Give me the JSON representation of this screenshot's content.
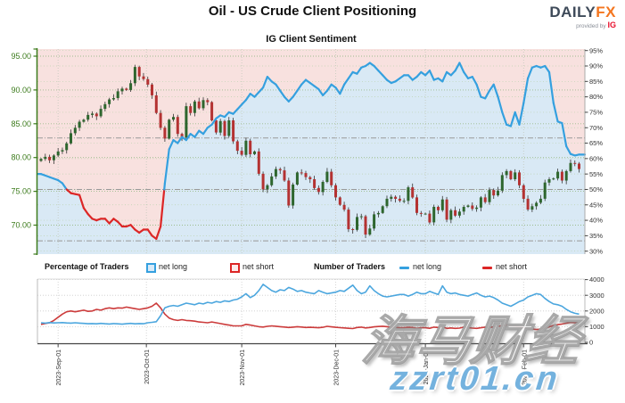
{
  "header": {
    "title": "Oil - US Crude Client Positioning",
    "subtitle": "IG Client Sentiment",
    "logo": {
      "daily": "DAILY",
      "fx": "FX",
      "provided_by": "provided by",
      "ig": "IG"
    }
  },
  "legend": {
    "pct_label": "Percentage of Traders",
    "pct_net_long": "net long",
    "pct_net_short": "net short",
    "num_label": "Number of Traders",
    "num_net_long": "net long",
    "num_net_short": "net short"
  },
  "watermark": {
    "cn_text": "海马财经",
    "url_text": "zzrt01.cn"
  },
  "colors": {
    "short_area": "#f8e1df",
    "long_area": "#d9e9f5",
    "line_long": "#35a0df",
    "line_short": "#dc2626",
    "candle_up": "#2e662e",
    "candle_down": "#b43232",
    "wick": "#333333",
    "grid_price": "#9cbc8c",
    "grid_pct": "#bcd2ae",
    "grid_threshold": "#999999",
    "grid_vertical": "#c2c8bc",
    "grid_bottom": "#cccccc",
    "axis_green": "#3c7b1c",
    "axis_gray": "#aaaaaa",
    "axis_dark": "#444444",
    "count_long": "#4ba6de",
    "count_short": "#cc3b3b",
    "label_dark": "#333333"
  },
  "chart_data": [
    {
      "type": "candlestick+line",
      "title": "IG Client Sentiment",
      "left_axis": {
        "ticks": [
          "95.00",
          "90.00",
          "85.00",
          "80.00",
          "75.00",
          "70.00"
        ]
      },
      "right_axis": {
        "ticks": [
          "95%",
          "90%",
          "85%",
          "80%",
          "75%",
          "70%",
          "65%",
          "60%",
          "55%",
          "50%",
          "45%",
          "40%",
          "35%",
          "30%"
        ]
      },
      "threshold_lines_pct": [
        66.67,
        50,
        33.33
      ],
      "x_axis": {
        "tick_labels": [
          "2023-Sep-01",
          "2023-Oct-01",
          "2023-Nov-01",
          "2023-Dec-01",
          "2024-Jan-01",
          "2024-Feb-01"
        ],
        "tick_indices": [
          4,
          24.67,
          47,
          69,
          90,
          113
        ]
      },
      "candles_close": [
        79.8,
        80.1,
        79.6,
        80.3,
        80.9,
        81.1,
        82.1,
        83.6,
        84.4,
        85.3,
        85.6,
        86.3,
        86.5,
        86.1,
        87.2,
        87.9,
        88.6,
        88.8,
        89.8,
        90.2,
        90.0,
        91.0,
        93.4,
        92.0,
        91.6,
        90.8,
        89.2,
        86.6,
        84.4,
        82.8,
        85.6,
        86.0,
        83.5,
        83.0,
        87.6,
        86.6,
        88.3,
        87.3,
        88.5,
        88.2,
        85.5,
        83.7,
        85.4,
        83.2,
        85.5,
        82.4,
        81.0,
        80.4,
        82.5,
        80.5,
        80.9,
        77.6,
        75.3,
        75.9,
        77.2,
        78.3,
        78.1,
        76.6,
        72.9,
        76.0,
        77.8,
        77.7,
        77.1,
        76.8,
        75.5,
        74.9,
        76.4,
        77.9,
        75.9,
        74.1,
        73.0,
        72.3,
        69.4,
        69.3,
        71.2,
        71.3,
        68.6,
        69.5,
        71.6,
        71.8,
        72.8,
        73.9,
        74.2,
        73.9,
        73.6,
        73.6,
        75.6,
        74.1,
        71.8,
        71.7,
        71.7,
        70.4,
        72.7,
        72.2,
        73.8,
        70.8,
        72.2,
        71.4,
        72.0,
        72.7,
        72.9,
        72.4,
        72.6,
        74.1,
        73.4,
        75.2,
        74.4,
        75.1,
        77.4,
        78.0,
        76.8,
        77.8,
        75.9,
        73.9,
        72.3,
        72.8,
        73.3,
        73.9,
        76.3,
        76.8,
        76.9,
        77.9,
        76.6,
        78.0,
        79.2,
        79.1,
        78.3
      ],
      "net_long_pct": [
        55,
        54.5,
        54,
        53.5,
        53,
        52,
        50,
        48.8,
        48.5,
        48.2,
        44,
        42,
        40.5,
        40,
        40.5,
        40.5,
        39,
        40.5,
        39.5,
        38,
        38,
        38.5,
        37,
        36,
        37,
        37,
        35,
        34,
        38,
        52,
        63,
        66,
        65,
        67,
        66,
        68,
        67,
        69,
        68,
        70,
        71,
        73,
        74,
        73.5,
        75,
        74.5,
        76,
        77.5,
        79,
        81,
        80,
        81.5,
        83,
        86.5,
        85,
        84,
        82,
        80,
        78.5,
        80,
        82,
        84,
        85.5,
        84.5,
        83.5,
        82.5,
        80.5,
        82,
        84,
        83,
        81,
        84,
        86,
        88,
        87.5,
        89.5,
        90,
        91,
        90,
        88.5,
        87,
        85.5,
        84.5,
        85,
        86,
        87,
        87,
        85.5,
        86.5,
        88,
        87,
        88.5,
        85.5,
        86,
        85,
        88,
        87,
        88.5,
        91,
        88,
        86,
        86.5,
        84,
        80,
        79.5,
        82,
        84,
        80,
        75,
        71,
        70.5,
        75,
        71,
        78,
        86,
        89.5,
        90,
        89.5,
        90,
        88,
        78,
        72,
        71.5,
        64,
        61.5,
        61,
        61.3
      ]
    },
    {
      "type": "line",
      "right_axis": {
        "ticks": [
          "4000",
          "3000",
          "2000",
          "1000",
          "0"
        ]
      },
      "net_long_count": [
        1250,
        1230,
        1260,
        1240,
        1250,
        1260,
        1240,
        1230,
        1250,
        1230,
        1210,
        1190,
        1200,
        1180,
        1210,
        1190,
        1170,
        1200,
        1180,
        1160,
        1190,
        1210,
        1180,
        1200,
        1190,
        1250,
        1280,
        1320,
        1700,
        2200,
        2300,
        2350,
        2300,
        2400,
        2500,
        2450,
        2400,
        2500,
        2450,
        2550,
        2500,
        2600,
        2550,
        2650,
        2600,
        2700,
        2750,
        2900,
        3100,
        2850,
        3000,
        3300,
        3700,
        3500,
        3300,
        3200,
        3350,
        3300,
        3500,
        3400,
        3250,
        3300,
        3200,
        3150,
        3100,
        3300,
        3200,
        3100,
        3150,
        3200,
        3300,
        3250,
        3450,
        3650,
        3300,
        3100,
        3200,
        3600,
        3300,
        3100,
        2950,
        2900,
        2950,
        3000,
        3050,
        3050,
        2950,
        3050,
        3200,
        3100,
        3100,
        3250,
        3150,
        3050,
        3600,
        3200,
        3100,
        3150,
        3050,
        3000,
        2950,
        3050,
        3150,
        3000,
        2900,
        2950,
        2850,
        2700,
        2500,
        2400,
        2300,
        2450,
        2600,
        2700,
        2900,
        3000,
        3100,
        3050,
        2800,
        2600,
        2450,
        2400,
        2300,
        2100,
        1950,
        1850,
        1800
      ],
      "net_short_count": [
        1150,
        1200,
        1250,
        1400,
        1600,
        1800,
        1950,
        2000,
        1950,
        2000,
        2050,
        1980,
        2000,
        2100,
        2050,
        2150,
        2200,
        2150,
        2200,
        2180,
        2250,
        2200,
        2150,
        2100,
        2150,
        2200,
        2300,
        2500,
        2200,
        1800,
        1550,
        1450,
        1400,
        1450,
        1400,
        1380,
        1350,
        1300,
        1280,
        1250,
        1300,
        1250,
        1200,
        1150,
        1100,
        1050,
        1050,
        1050,
        1150,
        1100,
        1050,
        1000,
        980,
        1020,
        1050,
        1030,
        1000,
        980,
        950,
        970,
        1000,
        980,
        950,
        960,
        950,
        930,
        960,
        1020,
        990,
        960,
        940,
        920,
        900,
        880,
        950,
        970,
        920,
        950,
        990,
        1010,
        1030,
        1000,
        970,
        950,
        930,
        930,
        960,
        950,
        900,
        930,
        930,
        900,
        970,
        950,
        990,
        890,
        920,
        890,
        910,
        970,
        930,
        910,
        890,
        930,
        970,
        950,
        990,
        1020,
        1060,
        1100,
        1060,
        1040,
        980,
        930,
        890,
        850,
        820,
        840,
        900,
        990,
        1080,
        1130,
        1170,
        1220,
        1270,
        1250,
        1280
      ]
    }
  ]
}
